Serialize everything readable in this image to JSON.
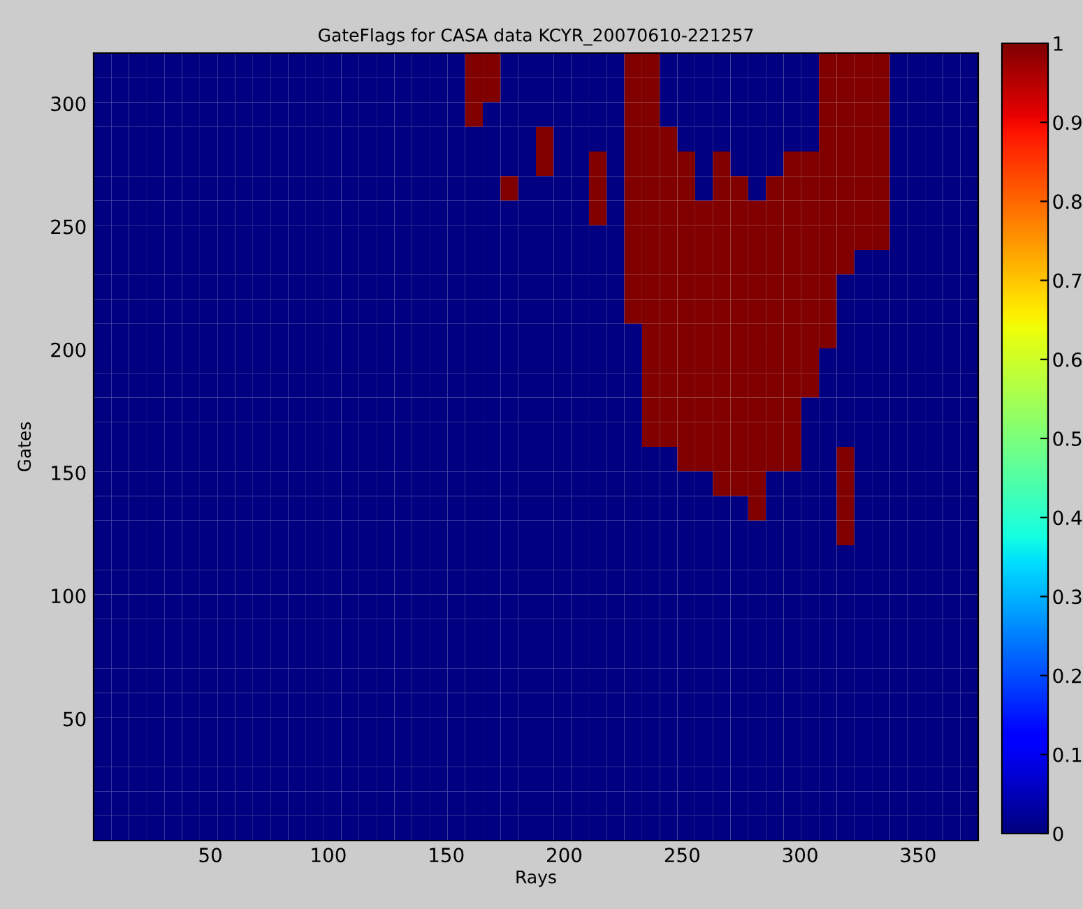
{
  "chart_data": {
    "type": "heatmap",
    "title": "GateFlags for CASA data KCYR_20070610-221257",
    "xlabel": "Rays",
    "ylabel": "Gates",
    "x": [
      4.25,
      11.75,
      19.25,
      26.75,
      34.25,
      41.75,
      49.25,
      56.75,
      64.25,
      71.75,
      79.25,
      86.75,
      94.25,
      101.75,
      109.25,
      116.75,
      124.25,
      131.75,
      139.25,
      146.75,
      154.25,
      161.75,
      169.25,
      176.75,
      184.25,
      191.75,
      199.25,
      206.75,
      214.25,
      221.75,
      229.25,
      236.75,
      244.25,
      251.75,
      259.25,
      266.75,
      274.25,
      281.75,
      289.25,
      296.75,
      304.25,
      311.75,
      319.25,
      326.75,
      334.25,
      341.75,
      349.25,
      356.75,
      364.25,
      371.75
    ],
    "xlim": [
      0.5,
      375.5
    ],
    "ylim": [
      0.5,
      320.5
    ],
    "xticks": [
      50,
      100,
      150,
      200,
      250,
      300,
      350
    ],
    "yticks": [
      50,
      100,
      150,
      200,
      250,
      300
    ],
    "clim": [
      0,
      1
    ],
    "cticks": [
      0,
      0.1,
      0.2,
      0.3,
      0.4,
      0.5,
      0.6,
      0.7,
      0.8,
      0.9,
      1
    ],
    "cells": [
      [
        0,
        0,
        0,
        0,
        0,
        0,
        0,
        0,
        0,
        0,
        0,
        0,
        0,
        0,
        0,
        0,
        0,
        0,
        0,
        0,
        0,
        1,
        1,
        0,
        0,
        0,
        0,
        0,
        0,
        0,
        1,
        1,
        0,
        0,
        0,
        0,
        0,
        0,
        0,
        0,
        0,
        1,
        1,
        1,
        1,
        0,
        0,
        0,
        0,
        0
      ],
      [
        0,
        0,
        0,
        0,
        0,
        0,
        0,
        0,
        0,
        0,
        0,
        0,
        0,
        0,
        0,
        0,
        0,
        0,
        0,
        0,
        0,
        1,
        1,
        0,
        0,
        0,
        0,
        0,
        0,
        0,
        1,
        1,
        0,
        0,
        0,
        0,
        0,
        0,
        0,
        0,
        0,
        1,
        1,
        1,
        1,
        0,
        0,
        0,
        0,
        0
      ],
      [
        0,
        0,
        0,
        0,
        0,
        0,
        0,
        0,
        0,
        0,
        0,
        0,
        0,
        0,
        0,
        0,
        0,
        0,
        0,
        0,
        0,
        1,
        0,
        0,
        0,
        0,
        0,
        0,
        0,
        0,
        1,
        1,
        0,
        0,
        0,
        0,
        0,
        0,
        0,
        0,
        0,
        1,
        1,
        1,
        1,
        0,
        0,
        0,
        0,
        0
      ],
      [
        0,
        0,
        0,
        0,
        0,
        0,
        0,
        0,
        0,
        0,
        0,
        0,
        0,
        0,
        0,
        0,
        0,
        0,
        0,
        0,
        0,
        0,
        0,
        0,
        0,
        1,
        0,
        0,
        0,
        0,
        1,
        1,
        1,
        0,
        0,
        0,
        0,
        0,
        0,
        0,
        0,
        1,
        1,
        1,
        1,
        0,
        0,
        0,
        0,
        0
      ],
      [
        0,
        0,
        0,
        0,
        0,
        0,
        0,
        0,
        0,
        0,
        0,
        0,
        0,
        0,
        0,
        0,
        0,
        0,
        0,
        0,
        0,
        0,
        0,
        0,
        0,
        1,
        0,
        0,
        1,
        0,
        1,
        1,
        1,
        1,
        0,
        1,
        0,
        0,
        0,
        1,
        1,
        1,
        1,
        1,
        1,
        0,
        0,
        0,
        0,
        0
      ],
      [
        0,
        0,
        0,
        0,
        0,
        0,
        0,
        0,
        0,
        0,
        0,
        0,
        0,
        0,
        0,
        0,
        0,
        0,
        0,
        0,
        0,
        0,
        0,
        1,
        0,
        0,
        0,
        0,
        1,
        0,
        1,
        1,
        1,
        1,
        0,
        1,
        1,
        0,
        1,
        1,
        1,
        1,
        1,
        1,
        1,
        0,
        0,
        0,
        0,
        0
      ],
      [
        0,
        0,
        0,
        0,
        0,
        0,
        0,
        0,
        0,
        0,
        0,
        0,
        0,
        0,
        0,
        0,
        0,
        0,
        0,
        0,
        0,
        0,
        0,
        0,
        0,
        0,
        0,
        0,
        1,
        0,
        1,
        1,
        1,
        1,
        1,
        1,
        1,
        1,
        1,
        1,
        1,
        1,
        1,
        1,
        1,
        0,
        0,
        0,
        0,
        0
      ],
      [
        0,
        0,
        0,
        0,
        0,
        0,
        0,
        0,
        0,
        0,
        0,
        0,
        0,
        0,
        0,
        0,
        0,
        0,
        0,
        0,
        0,
        0,
        0,
        0,
        0,
        0,
        0,
        0,
        0,
        0,
        1,
        1,
        1,
        1,
        1,
        1,
        1,
        1,
        1,
        1,
        1,
        1,
        1,
        1,
        1,
        0,
        0,
        0,
        0,
        0
      ],
      [
        0,
        0,
        0,
        0,
        0,
        0,
        0,
        0,
        0,
        0,
        0,
        0,
        0,
        0,
        0,
        0,
        0,
        0,
        0,
        0,
        0,
        0,
        0,
        0,
        0,
        0,
        0,
        0,
        0,
        0,
        1,
        1,
        1,
        1,
        1,
        1,
        1,
        1,
        1,
        1,
        1,
        1,
        1,
        0,
        0,
        0,
        0,
        0,
        0,
        0
      ],
      [
        0,
        0,
        0,
        0,
        0,
        0,
        0,
        0,
        0,
        0,
        0,
        0,
        0,
        0,
        0,
        0,
        0,
        0,
        0,
        0,
        0,
        0,
        0,
        0,
        0,
        0,
        0,
        0,
        0,
        0,
        1,
        1,
        1,
        1,
        1,
        1,
        1,
        1,
        1,
        1,
        1,
        1,
        0,
        0,
        0,
        0,
        0,
        0,
        0,
        0
      ],
      [
        0,
        0,
        0,
        0,
        0,
        0,
        0,
        0,
        0,
        0,
        0,
        0,
        0,
        0,
        0,
        0,
        0,
        0,
        0,
        0,
        0,
        0,
        0,
        0,
        0,
        0,
        0,
        0,
        0,
        0,
        1,
        1,
        1,
        1,
        1,
        1,
        1,
        1,
        1,
        1,
        1,
        1,
        0,
        0,
        0,
        0,
        0,
        0,
        0,
        0
      ],
      [
        0,
        0,
        0,
        0,
        0,
        0,
        0,
        0,
        0,
        0,
        0,
        0,
        0,
        0,
        0,
        0,
        0,
        0,
        0,
        0,
        0,
        0,
        0,
        0,
        0,
        0,
        0,
        0,
        0,
        0,
        0,
        1,
        1,
        1,
        1,
        1,
        1,
        1,
        1,
        1,
        1,
        1,
        0,
        0,
        0,
        0,
        0,
        0,
        0,
        0
      ],
      [
        0,
        0,
        0,
        0,
        0,
        0,
        0,
        0,
        0,
        0,
        0,
        0,
        0,
        0,
        0,
        0,
        0,
        0,
        0,
        0,
        0,
        0,
        0,
        0,
        0,
        0,
        0,
        0,
        0,
        0,
        0,
        1,
        1,
        1,
        1,
        1,
        1,
        1,
        1,
        1,
        1,
        0,
        0,
        0,
        0,
        0,
        0,
        0,
        0,
        0
      ],
      [
        0,
        0,
        0,
        0,
        0,
        0,
        0,
        0,
        0,
        0,
        0,
        0,
        0,
        0,
        0,
        0,
        0,
        0,
        0,
        0,
        0,
        0,
        0,
        0,
        0,
        0,
        0,
        0,
        0,
        0,
        0,
        1,
        1,
        1,
        1,
        1,
        1,
        1,
        1,
        1,
        1,
        0,
        0,
        0,
        0,
        0,
        0,
        0,
        0,
        0
      ],
      [
        0,
        0,
        0,
        0,
        0,
        0,
        0,
        0,
        0,
        0,
        0,
        0,
        0,
        0,
        0,
        0,
        0,
        0,
        0,
        0,
        0,
        0,
        0,
        0,
        0,
        0,
        0,
        0,
        0,
        0,
        0,
        1,
        1,
        1,
        1,
        1,
        1,
        1,
        1,
        1,
        0,
        0,
        0,
        0,
        0,
        0,
        0,
        0,
        0,
        0
      ],
      [
        0,
        0,
        0,
        0,
        0,
        0,
        0,
        0,
        0,
        0,
        0,
        0,
        0,
        0,
        0,
        0,
        0,
        0,
        0,
        0,
        0,
        0,
        0,
        0,
        0,
        0,
        0,
        0,
        0,
        0,
        0,
        1,
        1,
        1,
        1,
        1,
        1,
        1,
        1,
        1,
        0,
        0,
        0,
        0,
        0,
        0,
        0,
        0,
        0,
        0
      ],
      [
        0,
        0,
        0,
        0,
        0,
        0,
        0,
        0,
        0,
        0,
        0,
        0,
        0,
        0,
        0,
        0,
        0,
        0,
        0,
        0,
        0,
        0,
        0,
        0,
        0,
        0,
        0,
        0,
        0,
        0,
        0,
        0,
        0,
        1,
        1,
        1,
        1,
        1,
        1,
        1,
        0,
        0,
        1,
        0,
        0,
        0,
        0,
        0,
        0,
        0
      ],
      [
        0,
        0,
        0,
        0,
        0,
        0,
        0,
        0,
        0,
        0,
        0,
        0,
        0,
        0,
        0,
        0,
        0,
        0,
        0,
        0,
        0,
        0,
        0,
        0,
        0,
        0,
        0,
        0,
        0,
        0,
        0,
        0,
        0,
        0,
        0,
        1,
        1,
        1,
        0,
        0,
        0,
        0,
        1,
        0,
        0,
        0,
        0,
        0,
        0,
        0
      ],
      [
        0,
        0,
        0,
        0,
        0,
        0,
        0,
        0,
        0,
        0,
        0,
        0,
        0,
        0,
        0,
        0,
        0,
        0,
        0,
        0,
        0,
        0,
        0,
        0,
        0,
        0,
        0,
        0,
        0,
        0,
        0,
        0,
        0,
        0,
        0,
        0,
        0,
        1,
        0,
        0,
        0,
        0,
        1,
        0,
        0,
        0,
        0,
        0,
        0,
        0
      ],
      [
        0,
        0,
        0,
        0,
        0,
        0,
        0,
        0,
        0,
        0,
        0,
        0,
        0,
        0,
        0,
        0,
        0,
        0,
        0,
        0,
        0,
        0,
        0,
        0,
        0,
        0,
        0,
        0,
        0,
        0,
        0,
        0,
        0,
        0,
        0,
        0,
        0,
        0,
        0,
        0,
        0,
        0,
        1,
        0,
        0,
        0,
        0,
        0,
        0,
        0
      ],
      [
        0,
        0,
        0,
        0,
        0,
        0,
        0,
        0,
        0,
        0,
        0,
        0,
        0,
        0,
        0,
        0,
        0,
        0,
        0,
        0,
        0,
        0,
        0,
        0,
        0,
        0,
        0,
        0,
        0,
        0,
        0,
        0,
        0,
        0,
        0,
        0,
        0,
        0,
        0,
        0,
        0,
        0,
        0,
        0,
        0,
        0,
        0,
        0,
        0,
        0
      ],
      [
        0,
        0,
        0,
        0,
        0,
        0,
        0,
        0,
        0,
        0,
        0,
        0,
        0,
        0,
        0,
        0,
        0,
        0,
        0,
        0,
        0,
        0,
        0,
        0,
        0,
        0,
        0,
        0,
        0,
        0,
        0,
        0,
        0,
        0,
        0,
        0,
        0,
        0,
        0,
        0,
        0,
        0,
        0,
        0,
        0,
        0,
        0,
        0,
        0,
        0
      ],
      [
        0,
        0,
        0,
        0,
        0,
        0,
        0,
        0,
        0,
        0,
        0,
        0,
        0,
        0,
        0,
        0,
        0,
        0,
        0,
        0,
        0,
        0,
        0,
        0,
        0,
        0,
        0,
        0,
        0,
        0,
        0,
        0,
        0,
        0,
        0,
        0,
        0,
        0,
        0,
        0,
        0,
        0,
        0,
        0,
        0,
        0,
        0,
        0,
        0,
        0
      ],
      [
        0,
        0,
        0,
        0,
        0,
        0,
        0,
        0,
        0,
        0,
        0,
        0,
        0,
        0,
        0,
        0,
        0,
        0,
        0,
        0,
        0,
        0,
        0,
        0,
        0,
        0,
        0,
        0,
        0,
        0,
        0,
        0,
        0,
        0,
        0,
        0,
        0,
        0,
        0,
        0,
        0,
        0,
        0,
        0,
        0,
        0,
        0,
        0,
        0,
        0
      ],
      [
        0,
        0,
        0,
        0,
        0,
        0,
        0,
        0,
        0,
        0,
        0,
        0,
        0,
        0,
        0,
        0,
        0,
        0,
        0,
        0,
        0,
        0,
        0,
        0,
        0,
        0,
        0,
        0,
        0,
        0,
        0,
        0,
        0,
        0,
        0,
        0,
        0,
        0,
        0,
        0,
        0,
        0,
        0,
        0,
        0,
        0,
        0,
        0,
        0,
        0
      ],
      [
        0,
        0,
        0,
        0,
        0,
        0,
        0,
        0,
        0,
        0,
        0,
        0,
        0,
        0,
        0,
        0,
        0,
        0,
        0,
        0,
        0,
        0,
        0,
        0,
        0,
        0,
        0,
        0,
        0,
        0,
        0,
        0,
        0,
        0,
        0,
        0,
        0,
        0,
        0,
        0,
        0,
        0,
        0,
        0,
        0,
        0,
        0,
        0,
        0,
        0
      ],
      [
        0,
        0,
        0,
        0,
        0,
        0,
        0,
        0,
        0,
        0,
        0,
        0,
        0,
        0,
        0,
        0,
        0,
        0,
        0,
        0,
        0,
        0,
        0,
        0,
        0,
        0,
        0,
        0,
        0,
        0,
        0,
        0,
        0,
        0,
        0,
        0,
        0,
        0,
        0,
        0,
        0,
        0,
        0,
        0,
        0,
        0,
        0,
        0,
        0,
        0
      ],
      [
        0,
        0,
        0,
        0,
        0,
        0,
        0,
        0,
        0,
        0,
        0,
        0,
        0,
        0,
        0,
        0,
        0,
        0,
        0,
        0,
        0,
        0,
        0,
        0,
        0,
        0,
        0,
        0,
        0,
        0,
        0,
        0,
        0,
        0,
        0,
        0,
        0,
        0,
        0,
        0,
        0,
        0,
        0,
        0,
        0,
        0,
        0,
        0,
        0,
        0
      ],
      [
        0,
        0,
        0,
        0,
        0,
        0,
        0,
        0,
        0,
        0,
        0,
        0,
        0,
        0,
        0,
        0,
        0,
        0,
        0,
        0,
        0,
        0,
        0,
        0,
        0,
        0,
        0,
        0,
        0,
        0,
        0,
        0,
        0,
        0,
        0,
        0,
        0,
        0,
        0,
        0,
        0,
        0,
        0,
        0,
        0,
        0,
        0,
        0,
        0,
        0
      ],
      [
        0,
        0,
        0,
        0,
        0,
        0,
        0,
        0,
        0,
        0,
        0,
        0,
        0,
        0,
        0,
        0,
        0,
        0,
        0,
        0,
        0,
        0,
        0,
        0,
        0,
        0,
        0,
        0,
        0,
        0,
        0,
        0,
        0,
        0,
        0,
        0,
        0,
        0,
        0,
        0,
        0,
        0,
        0,
        0,
        0,
        0,
        0,
        0,
        0,
        0
      ],
      [
        0,
        0,
        0,
        0,
        0,
        0,
        0,
        0,
        0,
        0,
        0,
        0,
        0,
        0,
        0,
        0,
        0,
        0,
        0,
        0,
        0,
        0,
        0,
        0,
        0,
        0,
        0,
        0,
        0,
        0,
        0,
        0,
        0,
        0,
        0,
        0,
        0,
        0,
        0,
        0,
        0,
        0,
        0,
        0,
        0,
        0,
        0,
        0,
        0,
        0
      ],
      [
        0,
        0,
        0,
        0,
        0,
        0,
        0,
        0,
        0,
        0,
        0,
        0,
        0,
        0,
        0,
        0,
        0,
        0,
        0,
        0,
        0,
        0,
        0,
        0,
        0,
        0,
        0,
        0,
        0,
        0,
        0,
        0,
        0,
        0,
        0,
        0,
        0,
        0,
        0,
        0,
        0,
        0,
        0,
        0,
        0,
        0,
        0,
        0,
        0,
        0
      ]
    ]
  }
}
